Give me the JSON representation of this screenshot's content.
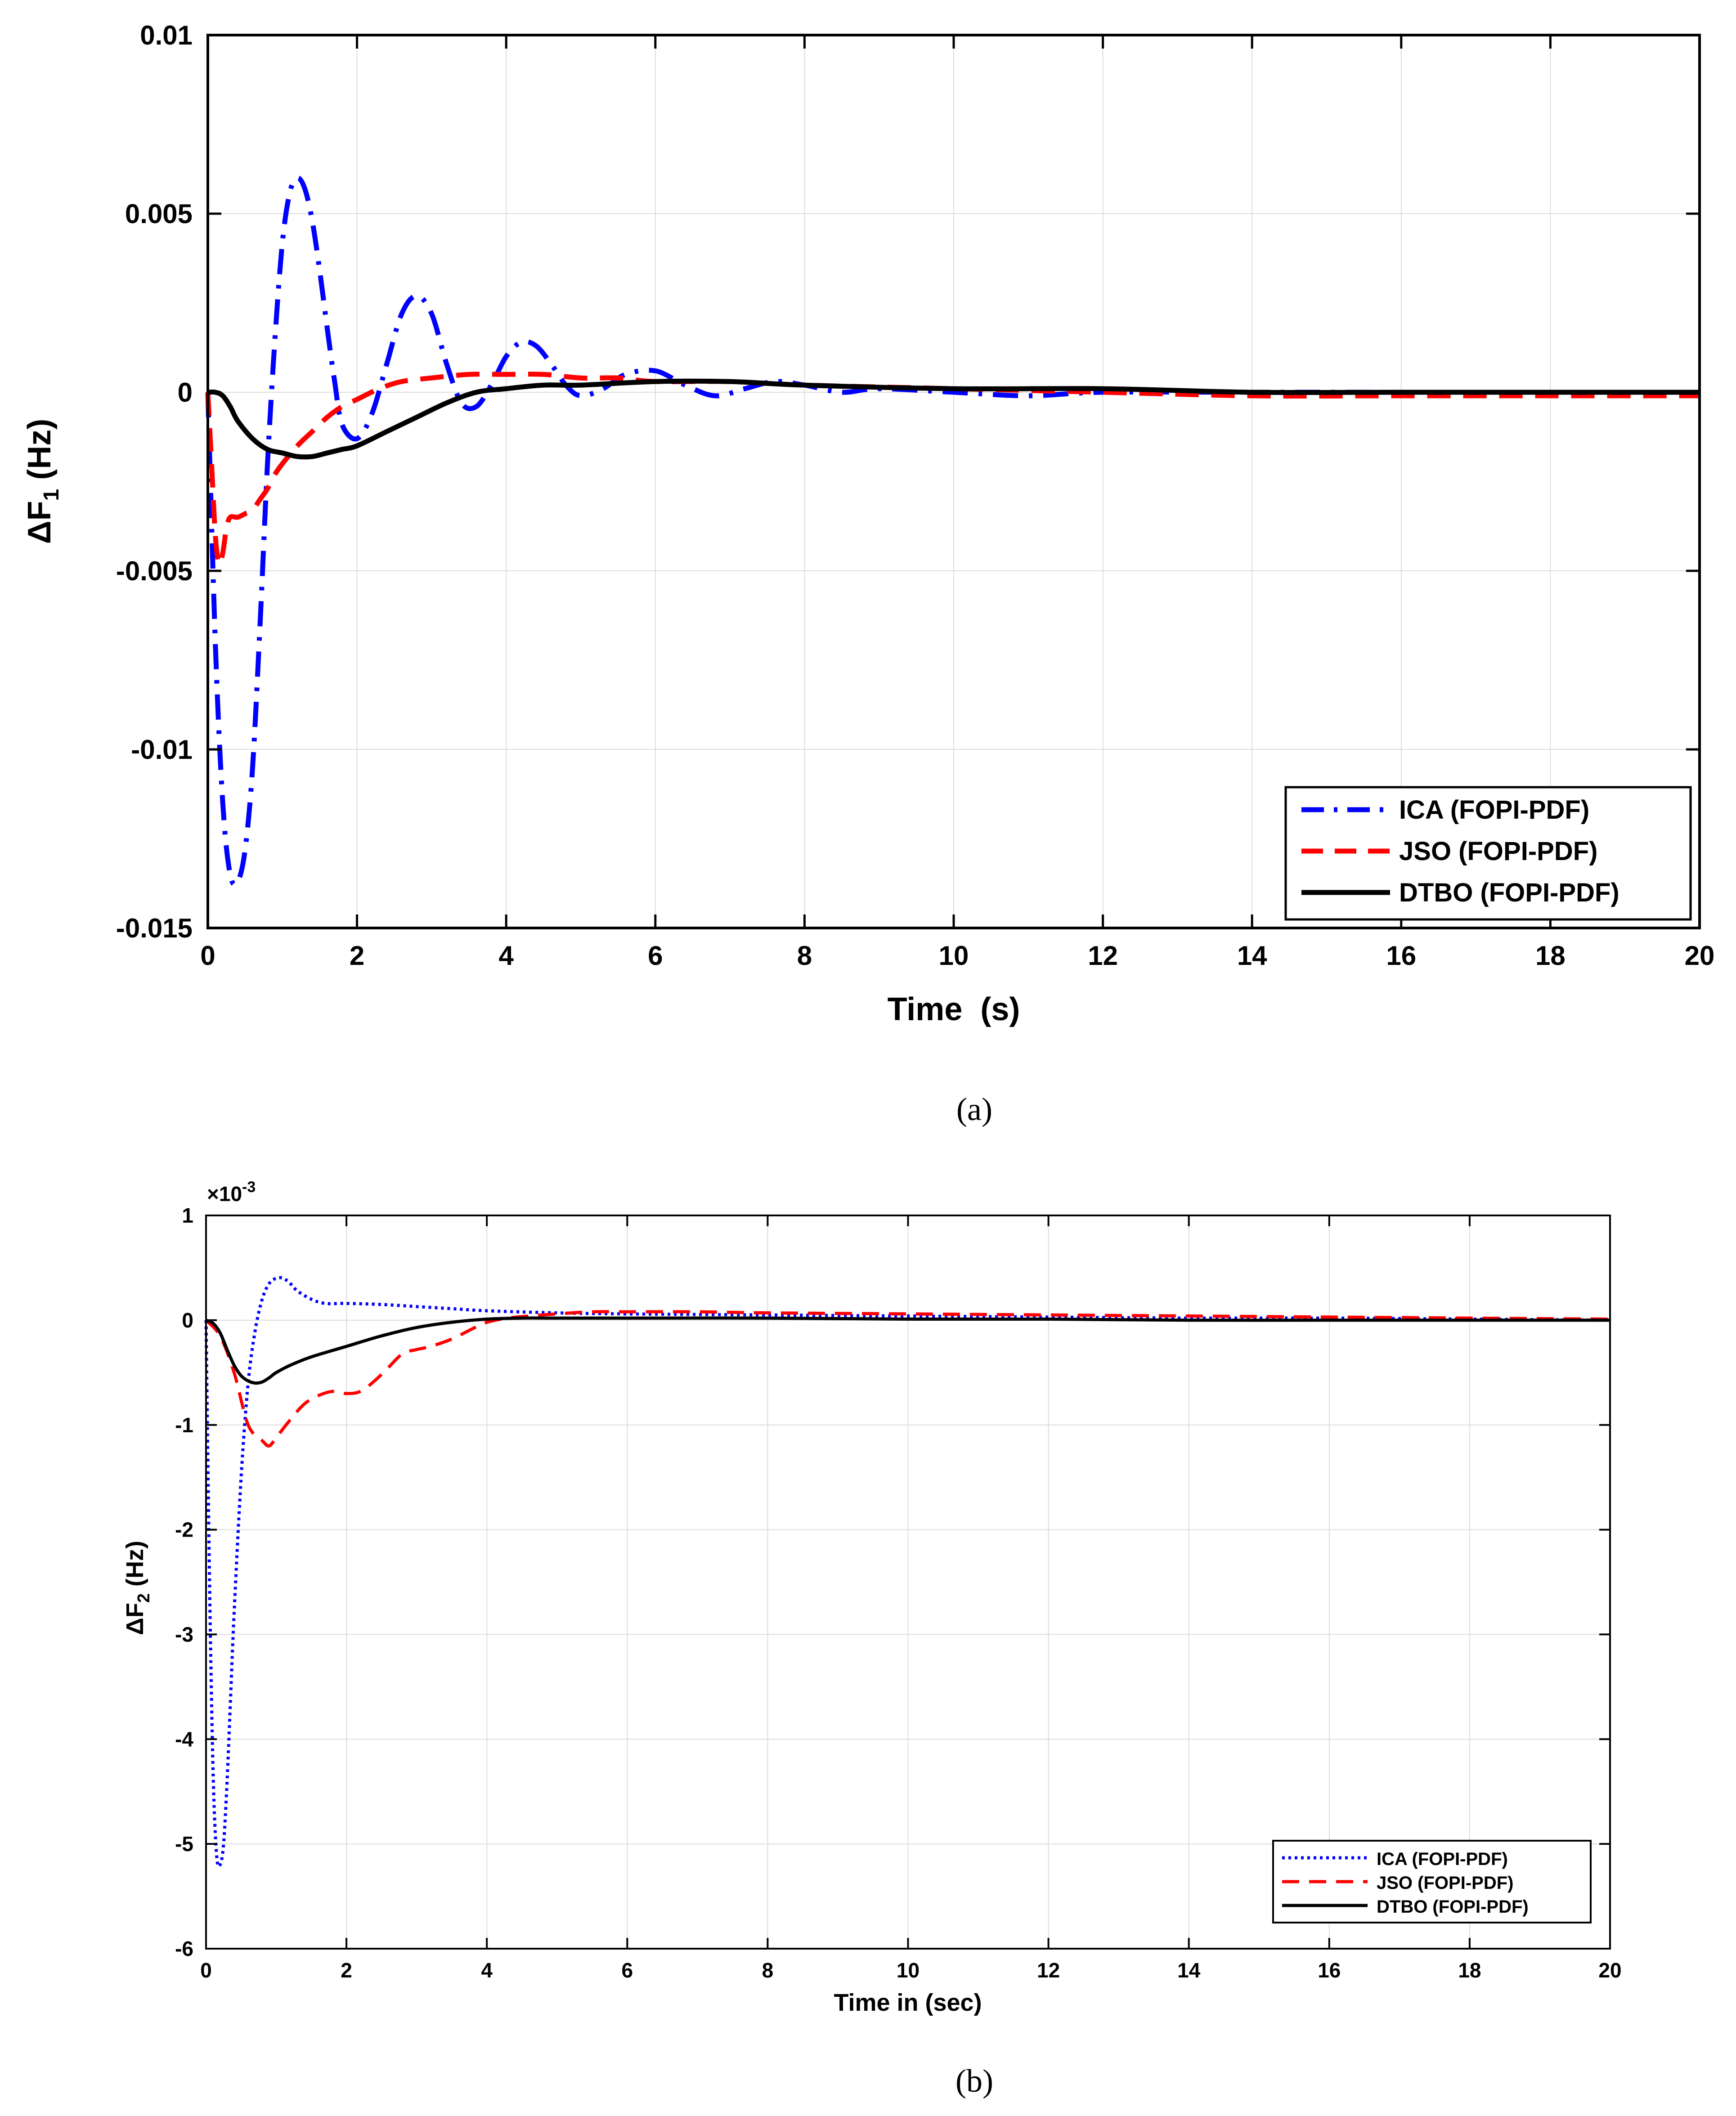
{
  "figure": {
    "caption_a": "(a)",
    "caption_b": "(b)"
  },
  "chart_data": [
    {
      "type": "line",
      "panel": "a",
      "title": "",
      "xlabel": "Time  (s)",
      "ylabel_main": "ΔF",
      "ylabel_sub": "1",
      "ylabel_unit": " (Hz)",
      "xlim": [
        0,
        20
      ],
      "ylim": [
        -0.015,
        0.01
      ],
      "xticks": [
        0,
        2,
        4,
        6,
        8,
        10,
        12,
        14,
        16,
        18,
        20
      ],
      "xtick_labels": [
        "0",
        "2",
        "4",
        "6",
        "8",
        "10",
        "12",
        "14",
        "16",
        "18",
        "20"
      ],
      "yticks": [
        -0.015,
        -0.01,
        -0.005,
        0,
        0.005,
        0.01
      ],
      "ytick_labels": [
        "-0.015",
        "-0.01",
        "-0.005",
        "0",
        "0.005",
        "0.01"
      ],
      "grid": true,
      "legend_position": "bottom-right",
      "series": [
        {
          "name": "ICA (FOPI-PDF)",
          "color": "#0000ff",
          "style": "dash-dot",
          "x": [
            0,
            0.1,
            0.2,
            0.3,
            0.4,
            0.5,
            0.6,
            0.7,
            0.8,
            0.9,
            1.0,
            1.1,
            1.2,
            1.3,
            1.4,
            1.5,
            1.6,
            1.7,
            1.8,
            2.0,
            2.2,
            2.4,
            2.6,
            2.8,
            3.0,
            3.2,
            3.4,
            3.6,
            3.8,
            4.0,
            4.2,
            4.4,
            4.6,
            4.8,
            5.0,
            5.3,
            5.6,
            6.0,
            6.4,
            6.8,
            7.2,
            7.6,
            8.0,
            8.5,
            9.0,
            10,
            11,
            12,
            14,
            16,
            18,
            20
          ],
          "y": [
            0,
            -0.007,
            -0.0115,
            -0.0135,
            -0.0137,
            -0.0128,
            -0.0105,
            -0.0065,
            -0.002,
            0.0015,
            0.0042,
            0.0056,
            0.006,
            0.0057,
            0.0048,
            0.0034,
            0.0018,
            0.0003,
            -0.0009,
            -0.0013,
            -0.0006,
            0.0008,
            0.0022,
            0.0027,
            0.0022,
            0.0008,
            -0.0003,
            -0.0004,
            0.0002,
            0.001,
            0.0014,
            0.0013,
            0.0008,
            0.0002,
            -0.0001,
            0.0001,
            0.0005,
            0.0006,
            0.0002,
            -0.0001,
            0.0001,
            0.0003,
            0.0002,
            0.0,
            0.0001,
            0.0,
            -0.0001,
            0.0,
            0.0,
            0.0,
            0.0,
            0.0
          ]
        },
        {
          "name": "JSO (FOPI-PDF)",
          "color": "#ff0000",
          "style": "dashed",
          "x": [
            0,
            0.05,
            0.1,
            0.15,
            0.2,
            0.25,
            0.3,
            0.4,
            0.5,
            0.6,
            0.7,
            0.8,
            0.9,
            1.0,
            1.2,
            1.4,
            1.6,
            1.8,
            2.0,
            2.3,
            2.6,
            3.0,
            3.5,
            4.0,
            4.5,
            5.0,
            5.5,
            6.0,
            7.0,
            8.0,
            10,
            12,
            14,
            16,
            18,
            20
          ],
          "y": [
            0,
            -0.002,
            -0.004,
            -0.0048,
            -0.0045,
            -0.0038,
            -0.0035,
            -0.0035,
            -0.0034,
            -0.0033,
            -0.003,
            -0.0027,
            -0.0023,
            -0.002,
            -0.0015,
            -0.0011,
            -0.0007,
            -0.0004,
            -0.0002,
            0.0001,
            0.0003,
            0.0004,
            0.0005,
            0.0005,
            0.0005,
            0.0004,
            0.0004,
            0.0003,
            0.0003,
            0.0002,
            0.0001,
            0.0,
            -0.0001,
            -0.0001,
            -0.0001,
            -0.0001
          ]
        },
        {
          "name": "DTBO (FOPI-PDF)",
          "color": "#000000",
          "style": "solid",
          "x": [
            0,
            0.1,
            0.2,
            0.3,
            0.4,
            0.6,
            0.8,
            1.0,
            1.2,
            1.4,
            1.6,
            1.8,
            2.0,
            2.4,
            2.8,
            3.2,
            3.6,
            4.0,
            4.5,
            5.0,
            6.0,
            7.0,
            8.0,
            10,
            12,
            14,
            16,
            18,
            20
          ],
          "y": [
            0,
            0.0,
            -0.0001,
            -0.0004,
            -0.0008,
            -0.0013,
            -0.0016,
            -0.0017,
            -0.0018,
            -0.0018,
            -0.0017,
            -0.0016,
            -0.0015,
            -0.0011,
            -0.0007,
            -0.0003,
            0.0,
            0.0001,
            0.0002,
            0.0002,
            0.0003,
            0.0003,
            0.0002,
            0.0001,
            0.0001,
            0.0,
            0.0,
            0.0,
            0.0
          ]
        }
      ]
    },
    {
      "type": "line",
      "panel": "b",
      "title": "",
      "xlabel": "Time in (sec)",
      "ylabel_main": "ΔF",
      "ylabel_sub": "2",
      "ylabel_unit": " (Hz)",
      "exponent_base": "×10",
      "exponent_power": "-3",
      "xlim": [
        0,
        20
      ],
      "ylim": [
        -6,
        1
      ],
      "xticks": [
        0,
        2,
        4,
        6,
        8,
        10,
        12,
        14,
        16,
        18,
        20
      ],
      "xtick_labels": [
        "0",
        "2",
        "4",
        "6",
        "8",
        "10",
        "12",
        "14",
        "16",
        "18",
        "20"
      ],
      "yticks": [
        -6,
        -5,
        -4,
        -3,
        -2,
        -1,
        0,
        1
      ],
      "ytick_labels": [
        "-6",
        "-5",
        "-4",
        "-3",
        "-2",
        "-1",
        "0",
        "1"
      ],
      "grid": true,
      "legend_position": "bottom-right",
      "series": [
        {
          "name": "ICA (FOPI-PDF)",
          "color": "#0000ff",
          "style": "dotted",
          "x": [
            0,
            0.05,
            0.1,
            0.15,
            0.2,
            0.25,
            0.3,
            0.35,
            0.4,
            0.5,
            0.6,
            0.7,
            0.8,
            0.9,
            1.0,
            1.1,
            1.2,
            1.3,
            1.5,
            1.7,
            2.0,
            2.5,
            3.0,
            3.5,
            4.0,
            5.0,
            6.0,
            8.0,
            10,
            12,
            14,
            16,
            18,
            20
          ],
          "y": [
            0,
            -2.5,
            -4.3,
            -5.1,
            -5.2,
            -5.0,
            -4.4,
            -3.6,
            -2.8,
            -1.5,
            -0.6,
            -0.1,
            0.2,
            0.35,
            0.4,
            0.4,
            0.35,
            0.28,
            0.2,
            0.16,
            0.16,
            0.15,
            0.13,
            0.11,
            0.09,
            0.07,
            0.06,
            0.05,
            0.04,
            0.03,
            0.02,
            0.02,
            0.01,
            0.0
          ]
        },
        {
          "name": "JSO (FOPI-PDF)",
          "color": "#ff0000",
          "style": "dashed",
          "x": [
            0,
            0.2,
            0.4,
            0.6,
            0.8,
            0.9,
            1.0,
            1.2,
            1.4,
            1.6,
            1.8,
            2.0,
            2.2,
            2.4,
            2.6,
            2.8,
            3.0,
            3.2,
            3.5,
            3.8,
            4.0,
            4.3,
            4.6,
            5.0,
            5.5,
            6.0,
            7.0,
            8.0,
            10,
            12,
            14,
            16,
            18,
            20
          ],
          "y": [
            0,
            -0.15,
            -0.5,
            -1.0,
            -1.15,
            -1.2,
            -1.12,
            -0.95,
            -0.8,
            -0.72,
            -0.68,
            -0.7,
            -0.68,
            -0.58,
            -0.45,
            -0.32,
            -0.28,
            -0.25,
            -0.18,
            -0.08,
            -0.02,
            0.02,
            0.04,
            0.06,
            0.08,
            0.08,
            0.08,
            0.07,
            0.06,
            0.05,
            0.04,
            0.03,
            0.02,
            0.01
          ]
        },
        {
          "name": "DTBO (FOPI-PDF)",
          "color": "#000000",
          "style": "solid",
          "x": [
            0,
            0.1,
            0.2,
            0.3,
            0.4,
            0.5,
            0.6,
            0.7,
            0.8,
            0.9,
            1.0,
            1.2,
            1.5,
            2.0,
            2.5,
            3.0,
            3.5,
            4.0,
            4.5,
            5.0,
            6.0,
            8.0,
            10,
            12,
            14,
            16,
            18,
            20
          ],
          "y": [
            0,
            -0.03,
            -0.12,
            -0.28,
            -0.43,
            -0.53,
            -0.58,
            -0.6,
            -0.59,
            -0.55,
            -0.5,
            -0.43,
            -0.35,
            -0.25,
            -0.15,
            -0.07,
            -0.02,
            0.01,
            0.02,
            0.02,
            0.02,
            0.02,
            0.01,
            0.01,
            0.0,
            0.0,
            0.0,
            0.0
          ]
        }
      ]
    }
  ]
}
